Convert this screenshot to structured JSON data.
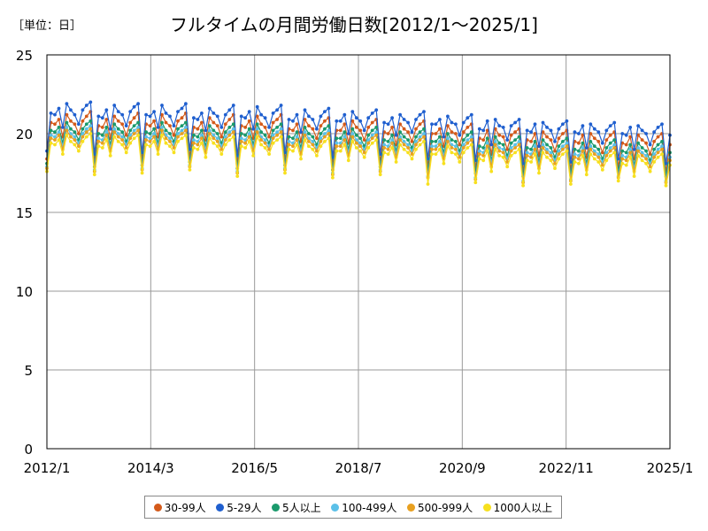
{
  "chart_data": {
    "type": "line",
    "title": "フルタイムの月間労働日数[2012/1～2025/1]",
    "unit_label": "［単位：日］",
    "xlabel": "",
    "ylabel": "",
    "ylim": [
      0,
      25
    ],
    "yticks": [
      "0",
      "5",
      "10",
      "15",
      "20",
      "25"
    ],
    "x_start": "2012/1",
    "x_end": "2025/1",
    "xtick_labels": [
      "2012/1",
      "2014/3",
      "2016/5",
      "2018/7",
      "2020/9",
      "2022/11",
      "2025/1"
    ],
    "grid": true,
    "legend_position": "bottom",
    "monthly_pattern_note": "",
    "series": [
      {
        "name": "30-99人",
        "color": "#d45a1a",
        "values": [
          18.4,
          20.7,
          20.6,
          20.9,
          19.8,
          21.2,
          20.8,
          20.6,
          20.0,
          20.8,
          21.1,
          21.4,
          18.2,
          20.5,
          20.4,
          20.9,
          19.7,
          21.1,
          20.8,
          20.6,
          19.9,
          20.7,
          21.0,
          21.3,
          18.3,
          20.6,
          20.5,
          20.8,
          19.8,
          21.2,
          20.7,
          20.5,
          19.9,
          20.8,
          21.0,
          21.3,
          18.5,
          20.4,
          20.3,
          20.7,
          19.6,
          21.0,
          20.7,
          20.5,
          19.8,
          20.6,
          20.9,
          21.2,
          18.1,
          20.5,
          20.4,
          20.8,
          19.7,
          21.1,
          20.6,
          20.4,
          19.8,
          20.7,
          20.9,
          21.2,
          18.3,
          20.3,
          20.2,
          20.6,
          19.5,
          20.9,
          20.5,
          20.3,
          19.7,
          20.5,
          20.8,
          21.0,
          18.0,
          20.2,
          20.2,
          20.6,
          19.4,
          20.8,
          20.4,
          20.2,
          19.6,
          20.4,
          20.7,
          20.9,
          18.2,
          20.1,
          20.0,
          20.4,
          19.3,
          20.6,
          20.3,
          20.1,
          19.5,
          20.3,
          20.6,
          20.8,
          17.9,
          20.0,
          20.0,
          20.3,
          19.2,
          20.5,
          20.1,
          20.0,
          19.3,
          20.1,
          20.4,
          20.6,
          17.8,
          19.7,
          19.6,
          20.2,
          18.7,
          20.3,
          19.9,
          19.8,
          19.0,
          19.9,
          20.1,
          20.3,
          17.6,
          19.6,
          19.5,
          20.0,
          18.6,
          20.1,
          19.8,
          19.6,
          18.9,
          19.7,
          20.0,
          20.2,
          17.7,
          19.5,
          19.4,
          19.9,
          18.5,
          20.0,
          19.7,
          19.5,
          18.8,
          19.6,
          19.9,
          20.1,
          17.9,
          19.4,
          19.3,
          19.8,
          18.4,
          19.9,
          19.6,
          19.4,
          18.7,
          19.5,
          19.8,
          20.0,
          17.6,
          19.3
        ]
      },
      {
        "name": "5-29人",
        "color": "#1f5fcf",
        "values": [
          18.9,
          21.3,
          21.2,
          21.6,
          20.4,
          21.9,
          21.5,
          21.2,
          20.6,
          21.5,
          21.8,
          22.0,
          18.7,
          21.1,
          21.0,
          21.5,
          20.3,
          21.8,
          21.4,
          21.2,
          20.5,
          21.4,
          21.7,
          21.9,
          18.8,
          21.2,
          21.1,
          21.4,
          20.4,
          21.8,
          21.3,
          21.1,
          20.5,
          21.4,
          21.6,
          21.9,
          19.0,
          21.0,
          20.9,
          21.3,
          20.2,
          21.6,
          21.3,
          21.1,
          20.4,
          21.2,
          21.5,
          21.8,
          18.6,
          21.1,
          21.0,
          21.4,
          20.3,
          21.7,
          21.2,
          21.0,
          20.4,
          21.3,
          21.5,
          21.8,
          18.8,
          20.9,
          20.8,
          21.2,
          20.1,
          21.5,
          21.1,
          20.9,
          20.3,
          21.1,
          21.4,
          21.6,
          18.5,
          20.8,
          20.8,
          21.2,
          20.0,
          21.4,
          21.0,
          20.8,
          20.2,
          21.0,
          21.3,
          21.5,
          18.7,
          20.7,
          20.6,
          21.0,
          19.9,
          21.2,
          20.9,
          20.7,
          20.1,
          20.9,
          21.2,
          21.4,
          18.4,
          20.6,
          20.6,
          20.9,
          19.8,
          21.1,
          20.7,
          20.6,
          19.9,
          20.7,
          21.0,
          21.2,
          18.3,
          20.3,
          20.2,
          20.8,
          19.3,
          20.9,
          20.5,
          20.4,
          19.6,
          20.5,
          20.7,
          20.9,
          18.1,
          20.2,
          20.1,
          20.6,
          19.2,
          20.7,
          20.4,
          20.2,
          19.5,
          20.3,
          20.6,
          20.8,
          18.2,
          20.1,
          20.0,
          20.5,
          19.1,
          20.6,
          20.3,
          20.1,
          19.4,
          20.2,
          20.5,
          20.7,
          18.4,
          20.0,
          19.9,
          20.4,
          19.0,
          20.5,
          20.2,
          20.0,
          19.3,
          20.1,
          20.4,
          20.6,
          18.1,
          19.9
        ]
      },
      {
        "name": "5人以上",
        "color": "#1a9a6c",
        "values": [
          18.1,
          20.2,
          20.1,
          20.4,
          19.4,
          20.7,
          20.3,
          20.1,
          19.6,
          20.3,
          20.6,
          20.8,
          17.9,
          20.0,
          19.9,
          20.4,
          19.3,
          20.6,
          20.3,
          20.1,
          19.5,
          20.2,
          20.5,
          20.7,
          18.0,
          20.1,
          20.0,
          20.3,
          19.4,
          20.7,
          20.2,
          20.0,
          19.5,
          20.3,
          20.5,
          20.7,
          18.2,
          19.9,
          19.8,
          20.2,
          19.2,
          20.5,
          20.2,
          20.0,
          19.4,
          20.1,
          20.4,
          20.6,
          17.8,
          20.0,
          19.9,
          20.3,
          19.3,
          20.6,
          20.1,
          19.9,
          19.4,
          20.2,
          20.4,
          20.6,
          18.0,
          19.8,
          19.7,
          20.1,
          19.1,
          20.4,
          20.0,
          19.8,
          19.3,
          20.0,
          20.3,
          20.5,
          17.7,
          19.7,
          19.7,
          20.1,
          19.0,
          20.3,
          19.9,
          19.7,
          19.2,
          19.9,
          20.2,
          20.4,
          17.9,
          19.6,
          19.5,
          19.9,
          18.9,
          20.1,
          19.8,
          19.6,
          19.1,
          19.8,
          20.1,
          20.3,
          17.6,
          19.5,
          19.5,
          19.8,
          18.8,
          20.0,
          19.6,
          19.5,
          18.9,
          19.6,
          19.9,
          20.1,
          17.5,
          19.2,
          19.1,
          19.7,
          18.3,
          19.8,
          19.4,
          19.3,
          18.6,
          19.4,
          19.6,
          19.8,
          17.3,
          19.1,
          19.0,
          19.5,
          18.2,
          19.6,
          19.3,
          19.1,
          18.5,
          19.2,
          19.5,
          19.7,
          17.4,
          19.0,
          18.9,
          19.4,
          18.1,
          19.5,
          19.2,
          19.0,
          18.4,
          19.1,
          19.4,
          19.6,
          17.6,
          18.9,
          18.8,
          19.3,
          18.0,
          19.4,
          19.1,
          18.9,
          18.3,
          19.0,
          19.3,
          19.5,
          17.3,
          18.8
        ]
      },
      {
        "name": "100-499人",
        "color": "#5bc0e8",
        "values": [
          17.9,
          19.9,
          19.8,
          20.1,
          19.2,
          20.4,
          20.0,
          19.8,
          19.4,
          20.0,
          20.3,
          20.5,
          17.7,
          19.7,
          19.6,
          20.1,
          19.1,
          20.3,
          20.0,
          19.8,
          19.3,
          19.9,
          20.2,
          20.4,
          17.8,
          19.8,
          19.7,
          20.0,
          19.2,
          20.4,
          19.9,
          19.7,
          19.3,
          20.0,
          20.2,
          20.4,
          18.0,
          19.6,
          19.5,
          19.9,
          19.0,
          20.2,
          19.9,
          19.7,
          19.2,
          19.8,
          20.1,
          20.3,
          17.6,
          19.7,
          19.6,
          20.0,
          19.1,
          20.3,
          19.8,
          19.6,
          19.2,
          19.9,
          20.1,
          20.3,
          17.8,
          19.5,
          19.4,
          19.8,
          18.9,
          20.1,
          19.7,
          19.5,
          19.1,
          19.7,
          20.0,
          20.2,
          17.5,
          19.4,
          19.4,
          19.8,
          18.8,
          20.0,
          19.6,
          19.4,
          19.0,
          19.6,
          19.9,
          20.1,
          17.7,
          19.3,
          19.2,
          19.6,
          18.7,
          19.8,
          19.5,
          19.3,
          18.9,
          19.5,
          19.8,
          20.0,
          17.3,
          19.2,
          19.2,
          19.5,
          18.6,
          19.7,
          19.3,
          19.2,
          18.7,
          19.3,
          19.6,
          19.8,
          17.2,
          18.9,
          18.8,
          19.4,
          18.1,
          19.5,
          19.1,
          19.0,
          18.4,
          19.1,
          19.3,
          19.5,
          17.0,
          18.8,
          18.7,
          19.2,
          18.0,
          19.3,
          19.0,
          18.8,
          18.3,
          18.9,
          19.2,
          19.4,
          17.1,
          18.7,
          18.6,
          19.1,
          17.9,
          19.2,
          18.9,
          18.7,
          18.2,
          18.8,
          19.1,
          19.3,
          17.3,
          18.6,
          18.5,
          19.0,
          17.8,
          19.1,
          18.8,
          18.6,
          18.1,
          18.7,
          19.0,
          19.2,
          17.0,
          18.5
        ]
      },
      {
        "name": "500-999人",
        "color": "#e8a020",
        "values": [
          17.8,
          19.7,
          19.6,
          19.9,
          19.0,
          20.2,
          19.8,
          19.6,
          19.2,
          19.8,
          20.1,
          20.3,
          17.6,
          19.5,
          19.4,
          19.9,
          18.9,
          20.1,
          19.8,
          19.6,
          19.1,
          19.7,
          20.0,
          20.2,
          17.7,
          19.6,
          19.5,
          19.8,
          19.0,
          20.2,
          19.7,
          19.5,
          19.1,
          19.8,
          20.0,
          20.2,
          17.9,
          19.4,
          19.3,
          19.7,
          18.8,
          20.0,
          19.7,
          19.5,
          19.0,
          19.6,
          19.9,
          20.1,
          17.5,
          19.5,
          19.4,
          19.8,
          18.9,
          20.1,
          19.6,
          19.4,
          19.0,
          19.7,
          19.9,
          20.1,
          17.7,
          19.3,
          19.2,
          19.6,
          18.7,
          19.9,
          19.5,
          19.3,
          18.9,
          19.5,
          19.8,
          20.0,
          17.4,
          19.2,
          19.2,
          19.6,
          18.6,
          19.8,
          19.4,
          19.2,
          18.8,
          19.4,
          19.7,
          19.9,
          17.6,
          19.1,
          19.0,
          19.4,
          18.5,
          19.6,
          19.3,
          19.1,
          18.7,
          19.3,
          19.6,
          19.8,
          17.2,
          19.0,
          19.0,
          19.3,
          18.4,
          19.5,
          19.1,
          19.0,
          18.5,
          19.1,
          19.4,
          19.6,
          17.1,
          18.7,
          18.6,
          19.2,
          17.9,
          19.3,
          18.9,
          18.8,
          18.2,
          18.9,
          19.1,
          19.3,
          16.9,
          18.6,
          18.5,
          19.0,
          17.8,
          19.1,
          18.8,
          18.6,
          18.1,
          18.7,
          19.0,
          19.2,
          17.0,
          18.5,
          18.4,
          18.9,
          17.7,
          19.0,
          18.7,
          18.5,
          18.0,
          18.6,
          18.9,
          19.1,
          17.2,
          18.4,
          18.3,
          18.8,
          17.6,
          18.9,
          18.6,
          18.4,
          17.9,
          18.5,
          18.8,
          19.0,
          16.9,
          18.3
        ]
      },
      {
        "name": "1000人以上",
        "color": "#f7e01e",
        "values": [
          17.6,
          19.4,
          19.3,
          19.6,
          18.7,
          19.9,
          19.5,
          19.3,
          18.9,
          19.5,
          19.8,
          20.0,
          17.4,
          19.2,
          19.1,
          19.6,
          18.6,
          19.8,
          19.5,
          19.3,
          18.8,
          19.4,
          19.7,
          19.9,
          17.5,
          19.3,
          19.2,
          19.5,
          18.7,
          19.9,
          19.4,
          19.2,
          18.8,
          19.5,
          19.7,
          19.9,
          17.7,
          19.1,
          19.0,
          19.4,
          18.5,
          19.7,
          19.4,
          19.2,
          18.7,
          19.3,
          19.6,
          19.8,
          17.3,
          19.2,
          19.1,
          19.5,
          18.6,
          19.8,
          19.3,
          19.1,
          18.7,
          19.4,
          19.6,
          19.8,
          17.5,
          19.0,
          18.9,
          19.3,
          18.4,
          19.6,
          19.2,
          19.0,
          18.6,
          19.2,
          19.5,
          19.7,
          17.2,
          18.9,
          18.9,
          19.3,
          18.3,
          19.5,
          19.1,
          18.9,
          18.5,
          19.1,
          19.4,
          19.6,
          17.4,
          18.8,
          18.7,
          19.1,
          18.2,
          19.3,
          19.0,
          18.8,
          18.4,
          19.0,
          19.3,
          19.5,
          16.8,
          18.7,
          18.7,
          19.0,
          18.1,
          19.2,
          18.8,
          18.7,
          18.2,
          18.8,
          19.1,
          19.3,
          16.9,
          18.4,
          18.3,
          18.9,
          17.6,
          19.0,
          18.6,
          18.5,
          17.9,
          18.6,
          18.8,
          19.0,
          16.7,
          18.3,
          18.2,
          18.7,
          17.5,
          18.8,
          18.5,
          18.3,
          17.8,
          18.4,
          18.7,
          18.9,
          16.8,
          18.2,
          18.1,
          18.6,
          17.4,
          18.7,
          18.4,
          18.2,
          17.7,
          18.3,
          18.6,
          18.8,
          17.0,
          18.1,
          18.0,
          18.5,
          17.3,
          18.6,
          18.3,
          18.1,
          17.6,
          18.2,
          18.5,
          18.7,
          16.7,
          18.0
        ]
      }
    ]
  }
}
